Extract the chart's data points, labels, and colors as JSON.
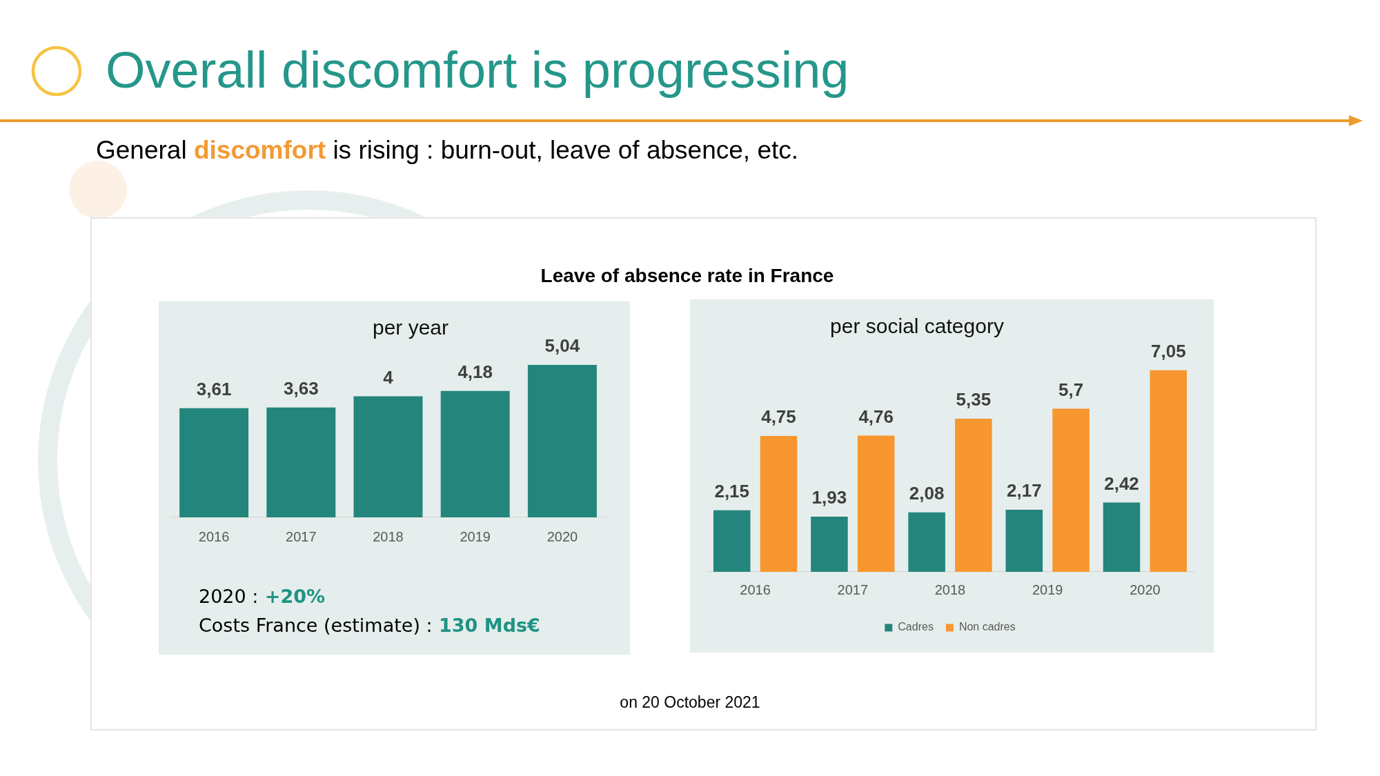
{
  "chart_data": [
    {
      "type": "other",
      "title": "Overall discomfort is progressing",
      "subtitle": "General discomfort is rising : burn-out, leave of absence, etc.",
      "annotations": [
        "Leave of absence rate in France",
        "on 20 October 2021"
      ]
    },
    {
      "type": "bar",
      "title": "per year",
      "categories": [
        "2016",
        "2017",
        "2018",
        "2019",
        "2020"
      ],
      "series": [
        {
          "color": "#23857c",
          "values": [
            3.61,
            3.63,
            4,
            4.18,
            5.04
          ],
          "value_labels": [
            "3,61",
            "3,63",
            "4",
            "4,18",
            "5,04"
          ]
        }
      ],
      "tick_labels": "x",
      "grid": false,
      "legend": false,
      "annotations": [
        "2020 : +20%",
        "Costs France (estimate) : 130 Mds€"
      ]
    },
    {
      "type": "bar",
      "title": "per social category",
      "categories": [
        "2016",
        "2017",
        "2018",
        "2019",
        "2020"
      ],
      "series": [
        {
          "name": "Cadres",
          "color": "#23857c",
          "values": [
            2.15,
            1.93,
            2.08,
            2.17,
            2.42
          ],
          "value_labels": [
            "2,15",
            "1,93",
            "2,08",
            "2,17",
            "2,42"
          ]
        },
        {
          "name": "Non cadres",
          "color": "#f8962f",
          "values": [
            4.75,
            4.76,
            5.35,
            5.7,
            7.05
          ],
          "value_labels": [
            "4,75",
            "4,76",
            "5,35",
            "5,7",
            "7,05"
          ]
        }
      ],
      "tick_labels": "x",
      "grid": false,
      "legend": "bottom"
    }
  ]
}
